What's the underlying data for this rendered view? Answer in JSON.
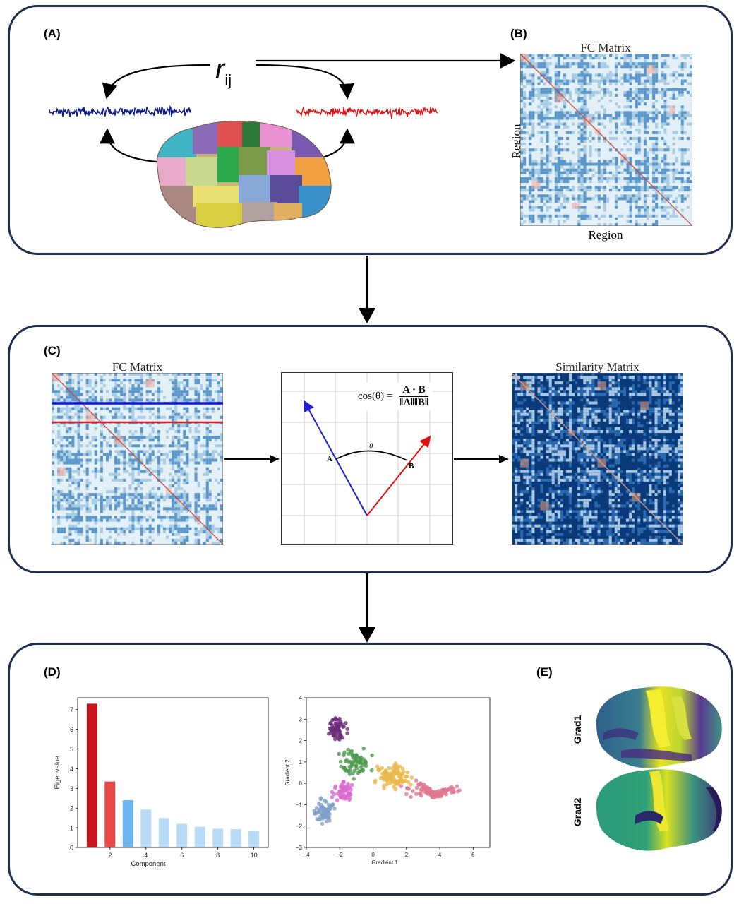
{
  "panels": {
    "a": {
      "label": "(A)",
      "r_symbol": "r",
      "r_subscript": "ij"
    },
    "b": {
      "label": "(B)",
      "title": "FC Matrix",
      "xlabel": "Region",
      "ylabel": "Region"
    },
    "c": {
      "label": "(C)",
      "left_title": "FC Matrix",
      "right_title": "Similarity Matrix",
      "formula_lhs": "cos(θ) =",
      "formula_num": "A · B",
      "formula_den": "‖A‖‖B‖",
      "vec_a": "A",
      "vec_b": "B",
      "angle": "θ"
    },
    "d": {
      "label": "(D)"
    },
    "e": {
      "label": "(E)",
      "grad1": "Grad1",
      "grad2": "Grad2"
    }
  },
  "colors": {
    "border": "#1f2f52",
    "ts_blue": "#0a1a8c",
    "ts_red": "#e01010",
    "dark_red": "#c8141c",
    "red": "#e84848",
    "mid_blue": "#6cb4ee",
    "light_blue": "#b8dcf8"
  },
  "chart_data": [
    {
      "type": "bar",
      "categories": [
        1,
        2,
        3,
        4,
        5,
        6,
        7,
        8,
        9,
        10
      ],
      "values": [
        7.3,
        3.35,
        2.4,
        1.93,
        1.5,
        1.2,
        1.05,
        0.95,
        0.93,
        0.85
      ],
      "xlabel": "Component",
      "ylabel": "Eigenvalue",
      "xticks": [
        "2",
        "4",
        "6",
        "8",
        "10"
      ],
      "yticks": [
        "0",
        "1",
        "2",
        "3",
        "4",
        "5",
        "6",
        "7"
      ],
      "ylim": [
        0,
        7.6
      ],
      "xlim": [
        0.2,
        10.8
      ],
      "bar_colors": [
        "#c8141c",
        "#e84848",
        "#6cb4ee",
        "#b8dcf8",
        "#b8dcf8",
        "#b8dcf8",
        "#b8dcf8",
        "#b8dcf8",
        "#b8dcf8",
        "#b8dcf8"
      ]
    },
    {
      "type": "scatter",
      "xlabel": "Gradient 1",
      "ylabel": "Gradient 2",
      "xlim": [
        -4,
        7
      ],
      "ylim": [
        -3,
        4
      ],
      "xticks": [
        "−4",
        "−2",
        "0",
        "2",
        "4",
        "6"
      ],
      "yticks": [
        "−3",
        "−2",
        "−1",
        "0",
        "1",
        "2",
        "3",
        "4"
      ],
      "series": [
        {
          "color": "#6b2c78",
          "center": [
            -2.1,
            2.5
          ],
          "spread": [
            0.5,
            0.5
          ],
          "n": 60
        },
        {
          "color": "#4c9a4c",
          "center": [
            -1.0,
            1.0
          ],
          "spread": [
            0.8,
            0.55
          ],
          "n": 70
        },
        {
          "color": "#e8b84a",
          "center": [
            1.2,
            0.3
          ],
          "spread": [
            0.9,
            0.45
          ],
          "n": 90
        },
        {
          "color": "#e07890",
          "center": [
            3.6,
            -0.2
          ],
          "spread": [
            1.2,
            0.35
          ],
          "n": 110
        },
        {
          "color": "#d86ad0",
          "center": [
            -1.8,
            -0.4
          ],
          "spread": [
            0.6,
            0.45
          ],
          "n": 50
        },
        {
          "color": "#7fa0c8",
          "center": [
            -2.9,
            -1.3
          ],
          "spread": [
            0.45,
            0.45
          ],
          "n": 70
        }
      ]
    }
  ]
}
